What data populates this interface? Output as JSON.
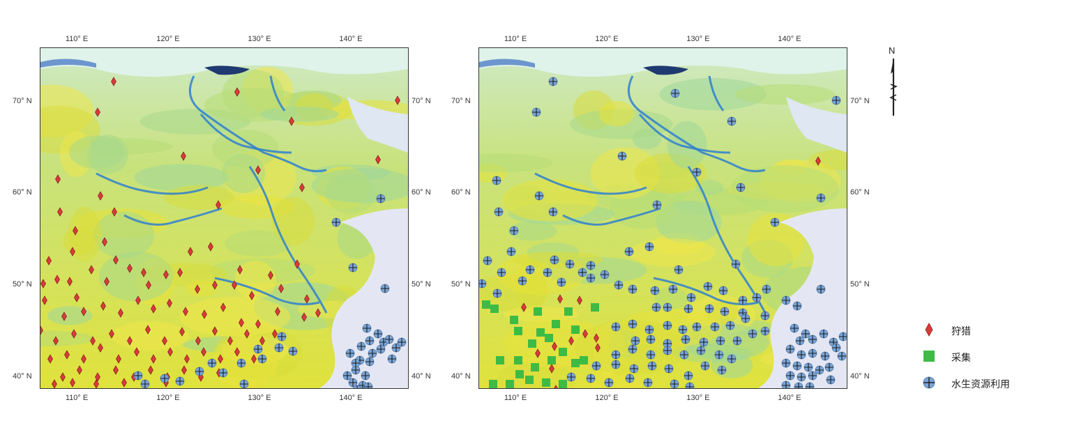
{
  "maps": [
    {
      "id": "left",
      "lon_labels": [
        "110° E",
        "120° E",
        "130° E",
        "140° E"
      ],
      "lat_labels": [
        "70° N",
        "60° N",
        "50° N",
        "40° N"
      ],
      "markers": "hunting",
      "show_water_on_edges": true
    },
    {
      "id": "right",
      "lon_labels": [
        "110° E",
        "120° E",
        "130° E",
        "140° E"
      ],
      "lat_labels": [
        "70° N",
        "60° N",
        "50° N",
        "40° N"
      ],
      "markers": "gathering_water"
    }
  ],
  "north_arrow": {
    "letter": "N"
  },
  "legend": [
    {
      "symbol": "red-diamond",
      "label": "狩猎",
      "color": "#d93b3b"
    },
    {
      "symbol": "green-square",
      "label": "采集",
      "color": "#3dbb45"
    },
    {
      "symbol": "blue-cross-circle",
      "label": "水生资源利用",
      "color": "#7aa6d8"
    }
  ]
}
